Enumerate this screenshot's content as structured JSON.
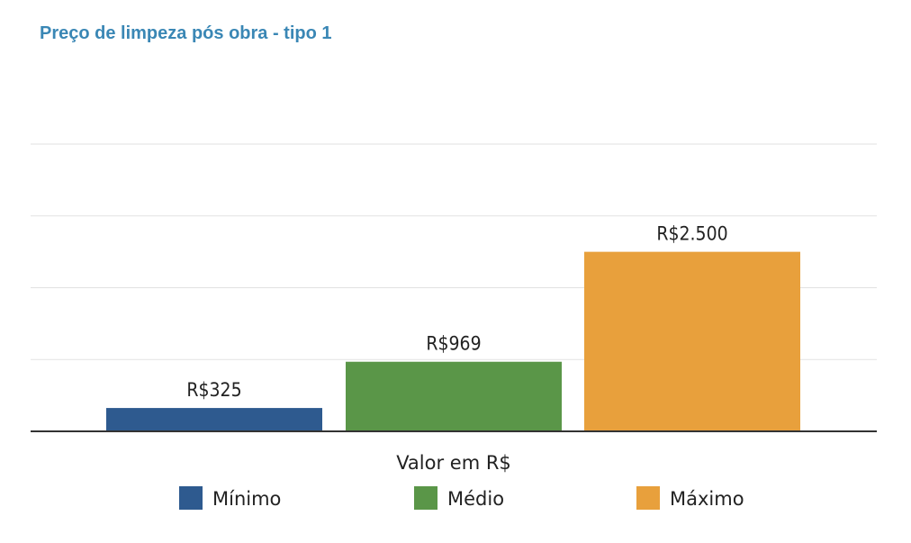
{
  "chart_data": {
    "type": "bar",
    "title": "Preço de limpeza pós obra - tipo 1",
    "xlabel": "Valor em R$",
    "ylabel": "",
    "ylim": [
      0,
      4000
    ],
    "grid": true,
    "legend_placement": "bottom",
    "categories": [
      "Mínimo",
      "Médio",
      "Máximo"
    ],
    "values": [
      325,
      969,
      2500
    ],
    "value_labels": [
      "R$325",
      "R$969",
      "R$2.500"
    ],
    "colors": [
      "#2e5a8f",
      "#5a9648",
      "#e8a03c"
    ]
  }
}
